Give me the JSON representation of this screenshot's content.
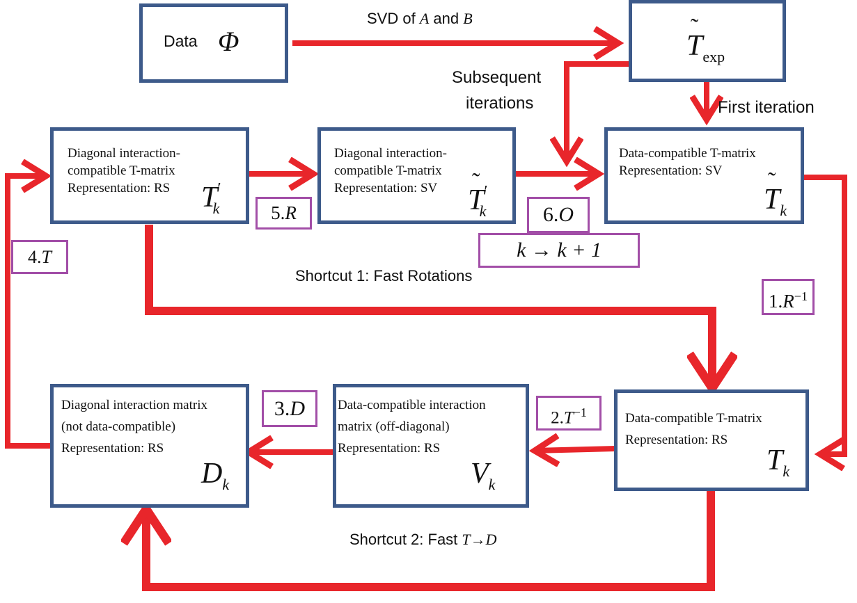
{
  "nodes": {
    "data": {
      "label": "Data",
      "symbol": "Φ"
    },
    "t_exp": {
      "symbol": "T",
      "subscript": "exp"
    },
    "t_prime_k": {
      "line1": "Diagonal interaction-",
      "line2": "compatible T-matrix",
      "line3": "Representation: RS",
      "symbol": "T",
      "prime": "′",
      "subscript": "k"
    },
    "t_tilde_prime_k": {
      "line1": "Diagonal interaction-",
      "line2": "compatible T-matrix",
      "line3": "Representation: SV",
      "symbol": "T",
      "prime": "′",
      "subscript": "k"
    },
    "t_tilde_k": {
      "line1": "Data-compatible T-matrix",
      "line2": "Representation: SV",
      "symbol": "T",
      "subscript": "k"
    },
    "t_k": {
      "line1": "Data-compatible T-matrix",
      "line2": "Representation: RS",
      "symbol": "T",
      "subscript": "k"
    },
    "v_k": {
      "line1": "Data-compatible interaction",
      "line2": "matrix (off-diagonal)",
      "line3": "Representation: RS",
      "symbol": "V",
      "subscript": "k"
    },
    "d_k": {
      "line1": "Diagonal interaction matrix",
      "line2": "(not data-compatible)",
      "line3": "Representation: RS",
      "symbol": "D",
      "subscript": "k"
    }
  },
  "steps": {
    "s1": {
      "num": "1.",
      "op": "R",
      "sup": "−1"
    },
    "s2": {
      "num": "2.",
      "op": "T",
      "sup": "−1"
    },
    "s3": {
      "num": "3.",
      "op": "D"
    },
    "s4": {
      "num": "4.",
      "op": "T"
    },
    "s5": {
      "num": "5.",
      "op": "R"
    },
    "s6": {
      "num": "6.",
      "op": "O"
    },
    "k_update": "k → k + 1"
  },
  "edge_labels": {
    "svd_prefix": "SVD of ",
    "svd_a": "A",
    "svd_and": " and ",
    "svd_b": "B",
    "subsequent_line1": "Subsequent",
    "subsequent_line2": "iterations",
    "first_iteration": "First iteration",
    "shortcut1": "Shortcut 1: Fast Rotations",
    "shortcut2_prefix": "Shortcut 2: Fast ",
    "shortcut2_t": "T",
    "shortcut2_arrow": "→",
    "shortcut2_d": "D"
  },
  "colors": {
    "box_border": "#3d5a8a",
    "arrow": "#e8262b",
    "step_border": "#a24ea7"
  }
}
